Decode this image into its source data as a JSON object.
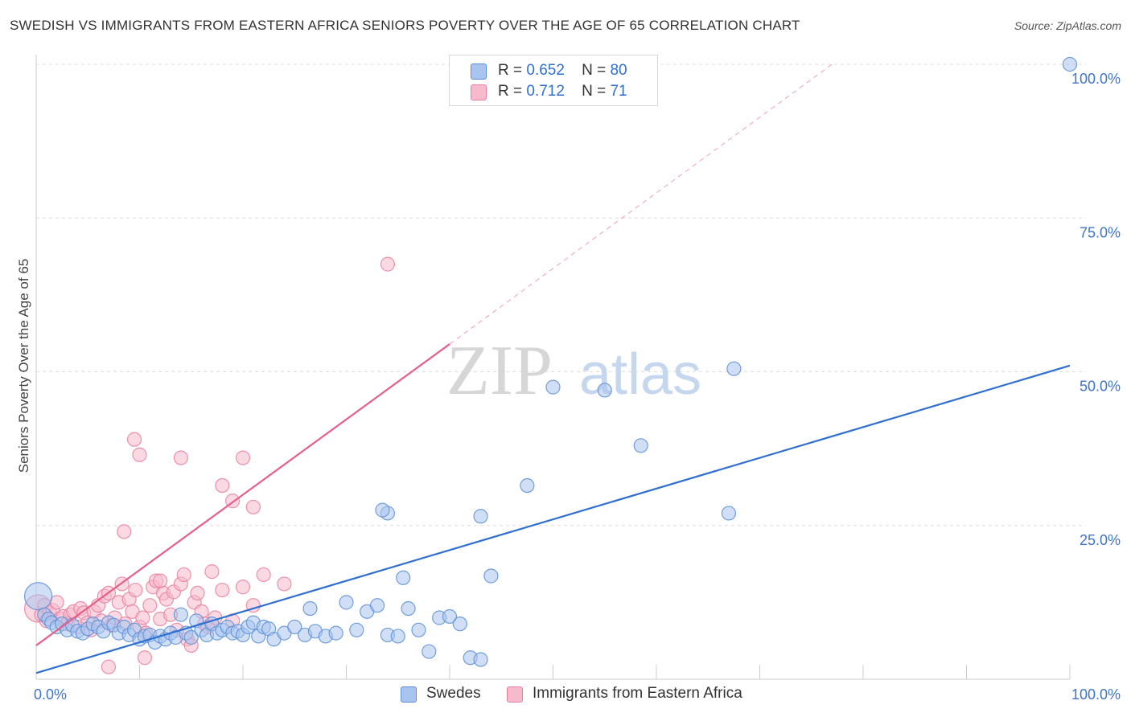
{
  "title": "SWEDISH VS IMMIGRANTS FROM EASTERN AFRICA SENIORS POVERTY OVER THE AGE OF 65 CORRELATION CHART",
  "source": "Source: ZipAtlas.com",
  "watermark": {
    "zip": "ZIP",
    "atlas": "atlas"
  },
  "legend": {
    "series": [
      {
        "r_label": "R =",
        "r_value": "0.652",
        "n_label": "N =",
        "n_value": "80"
      },
      {
        "r_label": "R =",
        "r_value": "0.712",
        "n_label": "N =",
        "n_value": "71"
      }
    ]
  },
  "chart_data": {
    "type": "scatter",
    "title": "SWEDISH VS IMMIGRANTS FROM EASTERN AFRICA SENIORS POVERTY OVER THE AGE OF 65 CORRELATION CHART",
    "xlabel": "",
    "ylabel": "Seniors Poverty Over the Age of 65",
    "xlim": [
      0,
      100
    ],
    "ylim": [
      0,
      100
    ],
    "x_tick_labels": [
      {
        "value": 0,
        "label": "0.0%"
      },
      {
        "value": 100,
        "label": "100.0%"
      }
    ],
    "y_tick_labels": [
      {
        "value": 25,
        "label": "25.0%"
      },
      {
        "value": 50,
        "label": "50.0%"
      },
      {
        "value": 75,
        "label": "75.0%"
      },
      {
        "value": 100,
        "label": "100.0%"
      }
    ],
    "grid": true,
    "colors": {
      "swedes_fill": "#a9c5ef",
      "swedes_stroke": "#5a8fd6",
      "swedes_line": "#2f6fd0",
      "imm_fill": "#f7b9cc",
      "imm_stroke": "#ea7fa0",
      "imm_line": "#e55f8b",
      "axis_text": "#3f74c9",
      "grid": "#dddddd"
    },
    "series": [
      {
        "name": "Swedes",
        "R": 0.652,
        "N": 80,
        "trend": {
          "x": [
            0,
            100
          ],
          "y": [
            1,
            51
          ]
        },
        "points": [
          {
            "x": 0.2,
            "y": 13.5,
            "big": true
          },
          {
            "x": 0.8,
            "y": 10.5
          },
          {
            "x": 1.2,
            "y": 9.8
          },
          {
            "x": 1.5,
            "y": 9.2
          },
          {
            "x": 2,
            "y": 8.5
          },
          {
            "x": 2.5,
            "y": 9
          },
          {
            "x": 3,
            "y": 8
          },
          {
            "x": 3.5,
            "y": 8.8
          },
          {
            "x": 4,
            "y": 7.8
          },
          {
            "x": 4.5,
            "y": 7.5
          },
          {
            "x": 5,
            "y": 8.2
          },
          {
            "x": 5.5,
            "y": 9
          },
          {
            "x": 6,
            "y": 8.5
          },
          {
            "x": 6.5,
            "y": 7.8
          },
          {
            "x": 7,
            "y": 9.2
          },
          {
            "x": 7.5,
            "y": 8.8
          },
          {
            "x": 8,
            "y": 7.5
          },
          {
            "x": 8.5,
            "y": 8.5
          },
          {
            "x": 9,
            "y": 7.2
          },
          {
            "x": 9.5,
            "y": 8
          },
          {
            "x": 10,
            "y": 6.5
          },
          {
            "x": 10.5,
            "y": 7
          },
          {
            "x": 11,
            "y": 7.2
          },
          {
            "x": 11.5,
            "y": 6
          },
          {
            "x": 12,
            "y": 7
          },
          {
            "x": 12.5,
            "y": 6.5
          },
          {
            "x": 13,
            "y": 7.5
          },
          {
            "x": 13.5,
            "y": 6.8
          },
          {
            "x": 14,
            "y": 10.5
          },
          {
            "x": 14.5,
            "y": 7.5
          },
          {
            "x": 15,
            "y": 6.8
          },
          {
            "x": 15.5,
            "y": 9.5
          },
          {
            "x": 16,
            "y": 8
          },
          {
            "x": 16.5,
            "y": 7.2
          },
          {
            "x": 17,
            "y": 9
          },
          {
            "x": 17.5,
            "y": 7.5
          },
          {
            "x": 18,
            "y": 8
          },
          {
            "x": 18.5,
            "y": 8.5
          },
          {
            "x": 19,
            "y": 7.5
          },
          {
            "x": 19.5,
            "y": 7.8
          },
          {
            "x": 20,
            "y": 7.2
          },
          {
            "x": 20.5,
            "y": 8.5
          },
          {
            "x": 21,
            "y": 9.2
          },
          {
            "x": 21.5,
            "y": 7
          },
          {
            "x": 22,
            "y": 8.5
          },
          {
            "x": 22.5,
            "y": 8.2
          },
          {
            "x": 23,
            "y": 6.5
          },
          {
            "x": 24,
            "y": 7.5
          },
          {
            "x": 25,
            "y": 8.5
          },
          {
            "x": 26,
            "y": 7.2
          },
          {
            "x": 26.5,
            "y": 11.5
          },
          {
            "x": 27,
            "y": 7.8
          },
          {
            "x": 28,
            "y": 7
          },
          {
            "x": 29,
            "y": 7.5
          },
          {
            "x": 30,
            "y": 12.5
          },
          {
            "x": 31,
            "y": 8
          },
          {
            "x": 32,
            "y": 11
          },
          {
            "x": 33,
            "y": 12
          },
          {
            "x": 34,
            "y": 7.2
          },
          {
            "x": 35,
            "y": 7
          },
          {
            "x": 35.5,
            "y": 16.5
          },
          {
            "x": 36,
            "y": 11.5
          },
          {
            "x": 37,
            "y": 8
          },
          {
            "x": 38,
            "y": 4.5
          },
          {
            "x": 39,
            "y": 10
          },
          {
            "x": 40,
            "y": 10.2
          },
          {
            "x": 41,
            "y": 9
          },
          {
            "x": 42,
            "y": 3.5
          },
          {
            "x": 43,
            "y": 3.2
          },
          {
            "x": 44,
            "y": 16.8
          },
          {
            "x": 34,
            "y": 27
          },
          {
            "x": 33.5,
            "y": 27.5
          },
          {
            "x": 47.5,
            "y": 31.5
          },
          {
            "x": 43,
            "y": 26.5
          },
          {
            "x": 50,
            "y": 47.5
          },
          {
            "x": 55,
            "y": 47
          },
          {
            "x": 58.5,
            "y": 38
          },
          {
            "x": 67.5,
            "y": 50.5
          },
          {
            "x": 67,
            "y": 27
          },
          {
            "x": 100,
            "y": 100
          }
        ]
      },
      {
        "name": "Immigrants from Eastern Africa",
        "R": 0.712,
        "N": 71,
        "trend": {
          "x": [
            0,
            40
          ],
          "y": [
            5.5,
            54.5
          ]
        },
        "trend_dashed": {
          "x": [
            40,
            77
          ],
          "y": [
            54.5,
            100
          ]
        },
        "points": [
          {
            "x": 0.2,
            "y": 11.5,
            "big": true
          },
          {
            "x": 0.5,
            "y": 10.5
          },
          {
            "x": 0.8,
            "y": 12
          },
          {
            "x": 1,
            "y": 9.5
          },
          {
            "x": 1.3,
            "y": 10.8
          },
          {
            "x": 1.6,
            "y": 11.2
          },
          {
            "x": 2,
            "y": 12.5
          },
          {
            "x": 2.3,
            "y": 9.8
          },
          {
            "x": 2.6,
            "y": 10.2
          },
          {
            "x": 3,
            "y": 9
          },
          {
            "x": 3.3,
            "y": 10.5
          },
          {
            "x": 3.6,
            "y": 11
          },
          {
            "x": 4,
            "y": 8.5
          },
          {
            "x": 4.3,
            "y": 11.5
          },
          {
            "x": 4.6,
            "y": 10.8
          },
          {
            "x": 5,
            "y": 9.2
          },
          {
            "x": 5.3,
            "y": 8
          },
          {
            "x": 5.6,
            "y": 11
          },
          {
            "x": 6,
            "y": 12
          },
          {
            "x": 6.3,
            "y": 9.5
          },
          {
            "x": 6.6,
            "y": 13.5
          },
          {
            "x": 7,
            "y": 14
          },
          {
            "x": 7.3,
            "y": 8.8
          },
          {
            "x": 7.6,
            "y": 10
          },
          {
            "x": 8,
            "y": 12.5
          },
          {
            "x": 8.3,
            "y": 15.5
          },
          {
            "x": 8.6,
            "y": 9
          },
          {
            "x": 9,
            "y": 13
          },
          {
            "x": 9.3,
            "y": 11
          },
          {
            "x": 9.6,
            "y": 14.5
          },
          {
            "x": 10,
            "y": 8.5
          },
          {
            "x": 10.3,
            "y": 10
          },
          {
            "x": 10.6,
            "y": 7.5
          },
          {
            "x": 11,
            "y": 12
          },
          {
            "x": 11.3,
            "y": 15
          },
          {
            "x": 11.6,
            "y": 16
          },
          {
            "x": 12,
            "y": 9.8
          },
          {
            "x": 12.3,
            "y": 14
          },
          {
            "x": 12.6,
            "y": 13
          },
          {
            "x": 13,
            "y": 10.5
          },
          {
            "x": 13.3,
            "y": 14.2
          },
          {
            "x": 13.6,
            "y": 8
          },
          {
            "x": 14,
            "y": 15.5
          },
          {
            "x": 14.3,
            "y": 17
          },
          {
            "x": 14.6,
            "y": 6.5
          },
          {
            "x": 15,
            "y": 5.5
          },
          {
            "x": 15.3,
            "y": 12.5
          },
          {
            "x": 15.6,
            "y": 14
          },
          {
            "x": 16,
            "y": 11
          },
          {
            "x": 16.3,
            "y": 9
          },
          {
            "x": 16.6,
            "y": 8.5
          },
          {
            "x": 17,
            "y": 17.5
          },
          {
            "x": 17.3,
            "y": 10
          },
          {
            "x": 18,
            "y": 14.5
          },
          {
            "x": 19,
            "y": 9.5
          },
          {
            "x": 20,
            "y": 15
          },
          {
            "x": 21,
            "y": 12
          },
          {
            "x": 7,
            "y": 2
          },
          {
            "x": 8.5,
            "y": 24
          },
          {
            "x": 10.5,
            "y": 3.5
          },
          {
            "x": 9.5,
            "y": 39
          },
          {
            "x": 10,
            "y": 36.5
          },
          {
            "x": 14,
            "y": 36
          },
          {
            "x": 18,
            "y": 31.5
          },
          {
            "x": 19,
            "y": 29
          },
          {
            "x": 20,
            "y": 36
          },
          {
            "x": 21,
            "y": 28
          },
          {
            "x": 22,
            "y": 17
          },
          {
            "x": 24,
            "y": 15.5
          },
          {
            "x": 12,
            "y": 16
          },
          {
            "x": 34,
            "y": 67.5
          }
        ]
      }
    ]
  }
}
